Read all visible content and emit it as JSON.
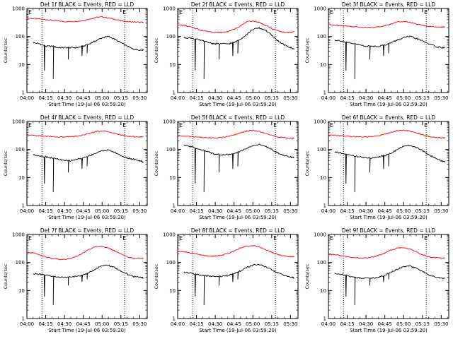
{
  "shared": {
    "ylabel": "Counts/sec",
    "xlabel": "Start Time (19-Jul-06 03:59:20)",
    "y_ticks": [
      "1",
      "10",
      "100",
      "1000"
    ],
    "x_ticks": [
      "04:00",
      "04:15",
      "04:30",
      "04:45",
      "05:00",
      "05:15",
      "05:30"
    ],
    "marker": "E",
    "colors": {
      "events": "#000000",
      "lld": "#ff0000",
      "axes": "#000000",
      "background": "#ffffff"
    }
  },
  "chart_data": [
    {
      "type": "line",
      "title": "Det 1f BLACK = Events, RED = LLD",
      "y_scale": "log",
      "ylim": [
        1,
        1000
      ],
      "xlim_minutes": [
        0,
        96
      ],
      "event_markers_minutes": [
        12,
        78
      ],
      "series": [
        {
          "name": "LLD",
          "x": [
            0,
            5,
            10,
            15,
            20,
            25,
            30,
            35,
            40,
            45,
            50,
            55,
            60,
            65,
            70,
            75,
            80,
            85,
            90,
            93
          ],
          "y": [
            450,
            440,
            420,
            400,
            380,
            360,
            340,
            340,
            350,
            370,
            420,
            480,
            500,
            460,
            410,
            370,
            340,
            330,
            320,
            320
          ]
        },
        {
          "name": "Events",
          "x": [
            5,
            10,
            15,
            20,
            25,
            30,
            35,
            40,
            45,
            50,
            55,
            60,
            65,
            70,
            75,
            80,
            85,
            90,
            93
          ],
          "y": [
            60,
            55,
            45,
            45,
            40,
            40,
            40,
            40,
            45,
            55,
            70,
            90,
            100,
            80,
            60,
            45,
            35,
            33,
            33
          ]
        }
      ]
    },
    {
      "type": "line",
      "title": "Det 2f BLACK = Events, RED = LLD",
      "y_scale": "log",
      "ylim": [
        1,
        1000
      ],
      "xlim_minutes": [
        0,
        96
      ],
      "event_markers_minutes": [
        12,
        78
      ],
      "series": [
        {
          "name": "LLD",
          "x": [
            0,
            5,
            10,
            15,
            20,
            25,
            30,
            35,
            40,
            45,
            50,
            55,
            60,
            65,
            70,
            75,
            80,
            85,
            90,
            93
          ],
          "y": [
            260,
            250,
            220,
            190,
            160,
            150,
            140,
            140,
            150,
            180,
            240,
            330,
            360,
            320,
            250,
            190,
            160,
            140,
            140,
            150
          ]
        },
        {
          "name": "Events",
          "x": [
            5,
            10,
            15,
            20,
            25,
            30,
            35,
            40,
            45,
            50,
            55,
            60,
            65,
            70,
            75,
            80,
            85,
            90,
            93
          ],
          "y": [
            90,
            90,
            80,
            70,
            60,
            55,
            55,
            55,
            60,
            80,
            120,
            180,
            200,
            170,
            110,
            70,
            50,
            40,
            35
          ]
        }
      ]
    },
    {
      "type": "line",
      "title": "Det 3f BLACK = Events, RED = LLD",
      "y_scale": "log",
      "ylim": [
        1,
        1000
      ],
      "xlim_minutes": [
        0,
        96
      ],
      "event_markers_minutes": [
        12,
        78
      ],
      "series": [
        {
          "name": "LLD",
          "x": [
            0,
            5,
            10,
            15,
            20,
            25,
            30,
            35,
            40,
            45,
            50,
            55,
            60,
            65,
            70,
            75,
            80,
            85,
            90,
            93
          ],
          "y": [
            260,
            255,
            245,
            235,
            225,
            215,
            210,
            210,
            220,
            240,
            280,
            330,
            350,
            320,
            280,
            250,
            230,
            220,
            220,
            220
          ]
        },
        {
          "name": "Events",
          "x": [
            5,
            10,
            15,
            20,
            25,
            30,
            35,
            40,
            45,
            50,
            55,
            60,
            65,
            70,
            75,
            80,
            85,
            90,
            93
          ],
          "y": [
            75,
            70,
            60,
            55,
            50,
            45,
            45,
            45,
            50,
            60,
            75,
            90,
            100,
            85,
            70,
            55,
            45,
            40,
            40
          ]
        }
      ]
    },
    {
      "type": "line",
      "title": "Det 4f BLACK = Events, RED = LLD",
      "y_scale": "log",
      "ylim": [
        1,
        1000
      ],
      "xlim_minutes": [
        0,
        96
      ],
      "event_markers_minutes": [
        12,
        78
      ],
      "series": [
        {
          "name": "LLD",
          "x": [
            0,
            5,
            10,
            15,
            20,
            25,
            30,
            35,
            40,
            45,
            50,
            55,
            60,
            65,
            70,
            75,
            80,
            85,
            90,
            93
          ],
          "y": [
            330,
            320,
            310,
            300,
            290,
            280,
            280,
            290,
            300,
            330,
            380,
            440,
            460,
            430,
            380,
            330,
            300,
            290,
            280,
            280
          ]
        },
        {
          "name": "Events",
          "x": [
            5,
            10,
            15,
            20,
            25,
            30,
            35,
            40,
            45,
            50,
            55,
            60,
            65,
            70,
            75,
            80,
            85,
            90,
            93
          ],
          "y": [
            65,
            60,
            55,
            50,
            45,
            40,
            40,
            45,
            50,
            60,
            75,
            90,
            95,
            80,
            60,
            50,
            45,
            40,
            35
          ]
        }
      ]
    },
    {
      "type": "line",
      "title": "Det 5f BLACK = Events, RED = LLD",
      "y_scale": "log",
      "ylim": [
        1,
        1000
      ],
      "xlim_minutes": [
        0,
        96
      ],
      "event_markers_minutes": [
        12,
        78
      ],
      "series": [
        {
          "name": "LLD",
          "x": [
            0,
            5,
            10,
            15,
            20,
            25,
            30,
            35,
            40,
            45,
            50,
            55,
            60,
            65,
            70,
            75,
            80,
            85,
            90,
            93
          ],
          "y": [
            310,
            300,
            290,
            280,
            270,
            260,
            260,
            270,
            290,
            330,
            390,
            450,
            480,
            440,
            380,
            320,
            280,
            260,
            250,
            250
          ]
        },
        {
          "name": "Events",
          "x": [
            5,
            10,
            15,
            20,
            25,
            30,
            35,
            40,
            45,
            50,
            55,
            60,
            65,
            70,
            75,
            80,
            85,
            90,
            93
          ],
          "y": [
            140,
            130,
            110,
            95,
            80,
            70,
            65,
            65,
            70,
            85,
            110,
            140,
            150,
            130,
            100,
            75,
            60,
            55,
            50
          ]
        }
      ]
    },
    {
      "type": "line",
      "title": "Det 6f BLACK = Events, RED = LLD",
      "y_scale": "log",
      "ylim": [
        1,
        1000
      ],
      "xlim_minutes": [
        0,
        96
      ],
      "event_markers_minutes": [
        12,
        78
      ],
      "series": [
        {
          "name": "LLD",
          "x": [
            0,
            5,
            10,
            15,
            20,
            25,
            30,
            35,
            40,
            45,
            50,
            55,
            60,
            65,
            70,
            75,
            80,
            85,
            90,
            93
          ],
          "y": [
            330,
            320,
            310,
            300,
            290,
            280,
            280,
            290,
            310,
            350,
            410,
            470,
            490,
            450,
            390,
            330,
            290,
            270,
            260,
            260
          ]
        },
        {
          "name": "Events",
          "x": [
            5,
            10,
            15,
            20,
            25,
            30,
            35,
            40,
            45,
            50,
            55,
            60,
            65,
            70,
            75,
            80,
            85,
            90,
            93
          ],
          "y": [
            80,
            75,
            65,
            60,
            55,
            50,
            50,
            55,
            60,
            75,
            100,
            130,
            140,
            120,
            90,
            65,
            50,
            40,
            35
          ]
        }
      ]
    },
    {
      "type": "line",
      "title": "Det 7f BLACK = Events, RED = LLD",
      "y_scale": "log",
      "ylim": [
        1,
        1000
      ],
      "xlim_minutes": [
        0,
        96
      ],
      "event_markers_minutes": [
        12,
        78
      ],
      "series": [
        {
          "name": "LLD",
          "x": [
            0,
            5,
            10,
            15,
            20,
            25,
            30,
            35,
            40,
            45,
            50,
            55,
            60,
            65,
            70,
            75,
            80,
            85,
            90,
            93
          ],
          "y": [
            230,
            220,
            190,
            160,
            140,
            130,
            130,
            140,
            170,
            220,
            300,
            370,
            380,
            330,
            260,
            200,
            160,
            140,
            140,
            140
          ]
        },
        {
          "name": "Events",
          "x": [
            5,
            10,
            15,
            20,
            25,
            30,
            35,
            40,
            45,
            50,
            55,
            60,
            65,
            70,
            75,
            80,
            85,
            90,
            93
          ],
          "y": [
            40,
            38,
            35,
            32,
            30,
            30,
            30,
            32,
            36,
            45,
            60,
            75,
            80,
            65,
            50,
            38,
            32,
            30,
            28
          ]
        }
      ]
    },
    {
      "type": "line",
      "title": "Det 8f BLACK = Events, RED = LLD",
      "y_scale": "log",
      "ylim": [
        1,
        1000
      ],
      "xlim_minutes": [
        0,
        96
      ],
      "event_markers_minutes": [
        12,
        78
      ],
      "series": [
        {
          "name": "LLD",
          "x": [
            0,
            5,
            10,
            15,
            20,
            25,
            30,
            35,
            40,
            45,
            50,
            55,
            60,
            65,
            70,
            75,
            80,
            85,
            90,
            93
          ],
          "y": [
            250,
            240,
            220,
            200,
            180,
            170,
            170,
            180,
            210,
            260,
            330,
            390,
            400,
            360,
            290,
            230,
            190,
            170,
            160,
            160
          ]
        },
        {
          "name": "Events",
          "x": [
            5,
            10,
            15,
            20,
            25,
            30,
            35,
            40,
            45,
            50,
            55,
            60,
            65,
            70,
            75,
            80,
            85,
            90,
            93
          ],
          "y": [
            45,
            42,
            38,
            35,
            32,
            32,
            32,
            34,
            40,
            50,
            65,
            80,
            85,
            70,
            55,
            42,
            35,
            30,
            28
          ]
        }
      ]
    },
    {
      "type": "line",
      "title": "Det 9f BLACK = Events, RED = LLD",
      "y_scale": "log",
      "ylim": [
        1,
        1000
      ],
      "xlim_minutes": [
        0,
        96
      ],
      "event_markers_minutes": [
        12,
        78
      ],
      "series": [
        {
          "name": "LLD",
          "x": [
            0,
            5,
            10,
            15,
            20,
            25,
            30,
            35,
            40,
            45,
            50,
            55,
            60,
            65,
            70,
            75,
            80,
            85,
            90,
            93
          ],
          "y": [
            200,
            190,
            175,
            160,
            150,
            145,
            145,
            155,
            180,
            220,
            280,
            330,
            340,
            300,
            240,
            190,
            160,
            150,
            145,
            145
          ]
        },
        {
          "name": "Events",
          "x": [
            5,
            10,
            15,
            20,
            25,
            30,
            35,
            40,
            45,
            50,
            55,
            60,
            65,
            70,
            75,
            80,
            85,
            90,
            93
          ],
          "y": [
            40,
            38,
            34,
            30,
            28,
            28,
            28,
            30,
            35,
            45,
            58,
            70,
            75,
            62,
            48,
            36,
            30,
            28,
            27
          ]
        }
      ]
    }
  ]
}
